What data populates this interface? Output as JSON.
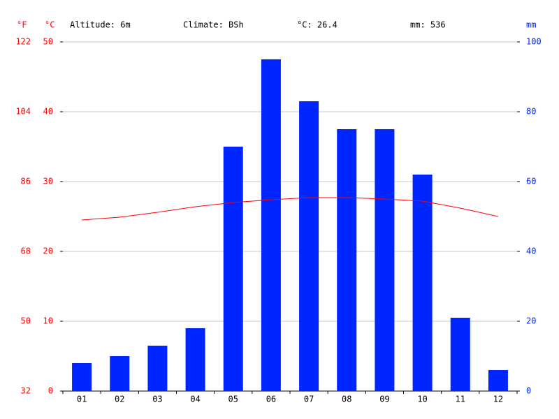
{
  "chart_data": {
    "type": "bar",
    "header": [
      "Altitude: 6m",
      "Climate: BSh",
      "°C: 26.4",
      "mm: 536"
    ],
    "y_label": "°C",
    "yf_label": "°F",
    "y2_label": "mm",
    "categories": [
      "01",
      "02",
      "03",
      "04",
      "05",
      "06",
      "07",
      "08",
      "09",
      "10",
      "11",
      "12"
    ],
    "series": [
      {
        "name": "mm",
        "type": "bar",
        "axis": "y2",
        "color": "#0026ff",
        "values": [
          8,
          10,
          13,
          18,
          70,
          95,
          83,
          75,
          75,
          62,
          21,
          6
        ]
      },
      {
        "name": "°C",
        "type": "line",
        "axis": "y",
        "color": "#ff0000",
        "values": [
          24.5,
          24.9,
          25.6,
          26.4,
          27.0,
          27.4,
          27.7,
          27.7,
          27.5,
          27.2,
          26.2,
          25.0
        ]
      }
    ],
    "ylim": [
      0,
      50
    ],
    "yticks": [
      0,
      10,
      20,
      30,
      40,
      50
    ],
    "yflim": [
      32,
      122
    ],
    "yfticks": [
      32,
      50,
      68,
      86,
      104,
      122
    ],
    "y2lim": [
      0,
      100
    ],
    "y2ticks": [
      0,
      20,
      40,
      60,
      80,
      100
    ],
    "grid": true
  }
}
